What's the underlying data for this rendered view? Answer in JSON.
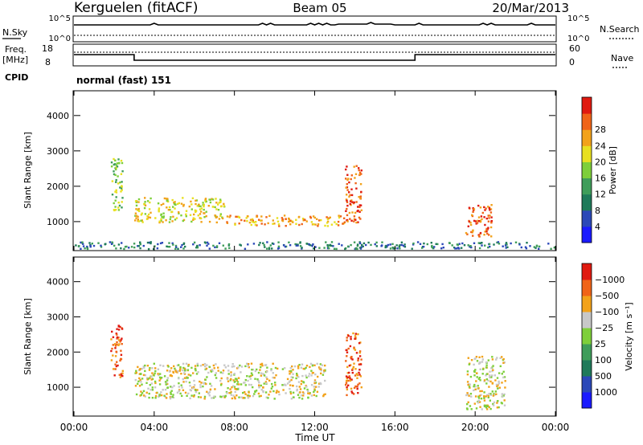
{
  "header": {
    "station": "Kerguelen (fitACF)",
    "beam": "Beam 05",
    "date": "20/Mar/2013"
  },
  "noise_panel": {
    "left_label": "N.Sky",
    "right_label": "N.Search",
    "tick_top": "10^5",
    "tick_bottom": "10^0"
  },
  "freq_panel": {
    "left_label_1": "Freq.",
    "left_label_2": "[MHz]",
    "left_ticks": [
      "18",
      "8"
    ],
    "right_label": "Nave",
    "right_ticks": [
      "60",
      "0"
    ]
  },
  "cpid": {
    "label": "CPID",
    "value": "normal (fast) 151"
  },
  "time_axis": {
    "title": "Time UT",
    "ticks": [
      "00:00",
      "04:00",
      "08:00",
      "12:00",
      "16:00",
      "20:00",
      "00:00"
    ]
  },
  "chart_data": [
    {
      "type": "heatmap",
      "panel": "power",
      "ylabel": "Slant Range [km]",
      "ylim": [
        180,
        4700
      ],
      "yticks": [
        1000,
        2000,
        3000,
        4000
      ],
      "colorbar": {
        "title": "Power [dB]",
        "tick_labels": [
          "4",
          "8",
          "12",
          "16",
          "20",
          "24",
          "28"
        ],
        "colors": [
          "#1a1aff",
          "#2b48b8",
          "#1f7a5a",
          "#3f9d5a",
          "#7ecf3a",
          "#e8e020",
          "#f2a21a",
          "#f06418",
          "#e01a10"
        ]
      },
      "features": [
        {
          "t_start": 0.0,
          "t_end": 24.0,
          "range_km": [
            250,
            450
          ],
          "power_db": 8
        },
        {
          "t_start": 1.8,
          "t_end": 2.4,
          "range_km": [
            1300,
            2800
          ],
          "power_db": 14
        },
        {
          "t_start": 3.0,
          "t_end": 7.5,
          "range_km": [
            1000,
            1700
          ],
          "power_db": 20
        },
        {
          "t_start": 7.5,
          "t_end": 13.5,
          "range_km": [
            900,
            1200
          ],
          "power_db": 24
        },
        {
          "t_start": 13.5,
          "t_end": 14.3,
          "range_km": [
            1000,
            2600
          ],
          "power_db": 26
        },
        {
          "t_start": 19.5,
          "t_end": 20.8,
          "range_km": [
            600,
            1500
          ],
          "power_db": 28
        }
      ]
    },
    {
      "type": "heatmap",
      "panel": "velocity",
      "ylabel": "Slant Range [km]",
      "ylim": [
        180,
        4700
      ],
      "yticks": [
        1000,
        2000,
        3000,
        4000
      ],
      "colorbar": {
        "title": "Velocity [m s⁻¹]",
        "tick_labels": [
          "1000",
          "500",
          "100",
          "25",
          "−25",
          "−100",
          "−500",
          "−1000"
        ],
        "colors": [
          "#1a1aff",
          "#2b48b8",
          "#1f7a5a",
          "#3f9d5a",
          "#7ecf3a",
          "#c8c8c8",
          "#f2a21a",
          "#f06418",
          "#e01a10"
        ]
      },
      "features": [
        {
          "t_start": 1.8,
          "t_end": 2.4,
          "range_km": [
            1300,
            2800
          ],
          "velocity_ms": -500
        },
        {
          "t_start": 3.0,
          "t_end": 12.5,
          "range_km": [
            700,
            1700
          ],
          "velocity_ms": 0
        },
        {
          "t_start": 13.5,
          "t_end": 14.3,
          "range_km": [
            800,
            2600
          ],
          "velocity_ms": -500
        },
        {
          "t_start": 19.5,
          "t_end": 21.5,
          "range_km": [
            400,
            1900
          ],
          "velocity_ms": 0
        }
      ]
    }
  ]
}
